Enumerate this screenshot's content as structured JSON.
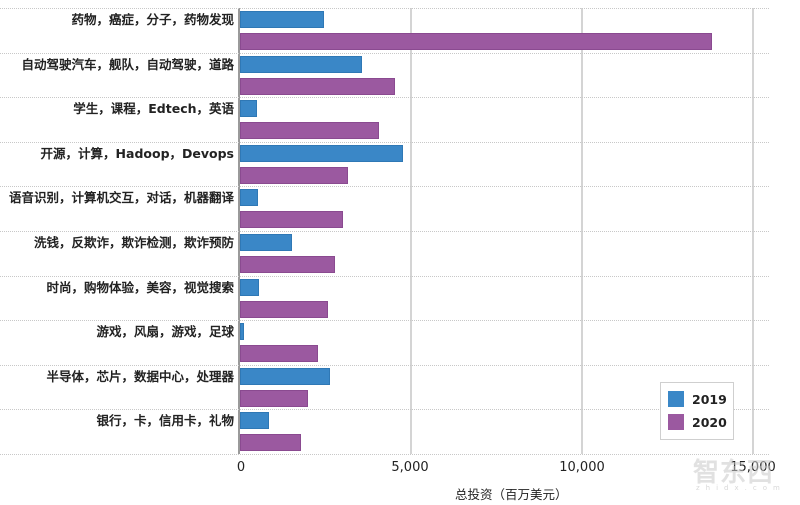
{
  "chart_data": {
    "type": "bar",
    "orientation": "horizontal",
    "title": "",
    "xlabel": "总投资（百万美元）",
    "ylabel": "",
    "xlim": [
      0,
      16000
    ],
    "x_ticks": [
      0,
      5000,
      10000,
      15000
    ],
    "x_tick_labels": [
      "0",
      "5,000",
      "10,000",
      "15,000"
    ],
    "grid": {
      "vertical": true,
      "horizontal_dotted_separators": true
    },
    "legend_position": "lower right",
    "categories": [
      "药物，癌症，分子，药物发现",
      "自动驾驶汽车，舰队，自动驾驶，道路",
      "学生，课程，Edtech，英语",
      "开源，计算，Hadoop，Devops",
      "语音识别，计算机交互，对话，机器翻译",
      "洗钱，反欺诈，欺诈检测，欺诈预防",
      "时尚，购物体验，美容，视觉搜索",
      "游戏，风扇，游戏，足球",
      "半导体，芯片，数据中心，处理器",
      "银行，卡，信用卡，礼物"
    ],
    "series": [
      {
        "name": "2019",
        "color": "#3a87c7",
        "values": [
          2450,
          3560,
          500,
          4780,
          520,
          1520,
          550,
          120,
          2620,
          850
        ]
      },
      {
        "name": "2020",
        "color": "#9b59a0",
        "values": [
          13800,
          4520,
          4050,
          3150,
          3000,
          2770,
          2570,
          2270,
          1980,
          1780
        ]
      }
    ]
  },
  "legend": {
    "items": [
      {
        "label": "2019",
        "color": "#3a87c7"
      },
      {
        "label": "2020",
        "color": "#9b59a0"
      }
    ]
  },
  "watermark": {
    "text": "智东西",
    "sub": "zhidx.com"
  }
}
